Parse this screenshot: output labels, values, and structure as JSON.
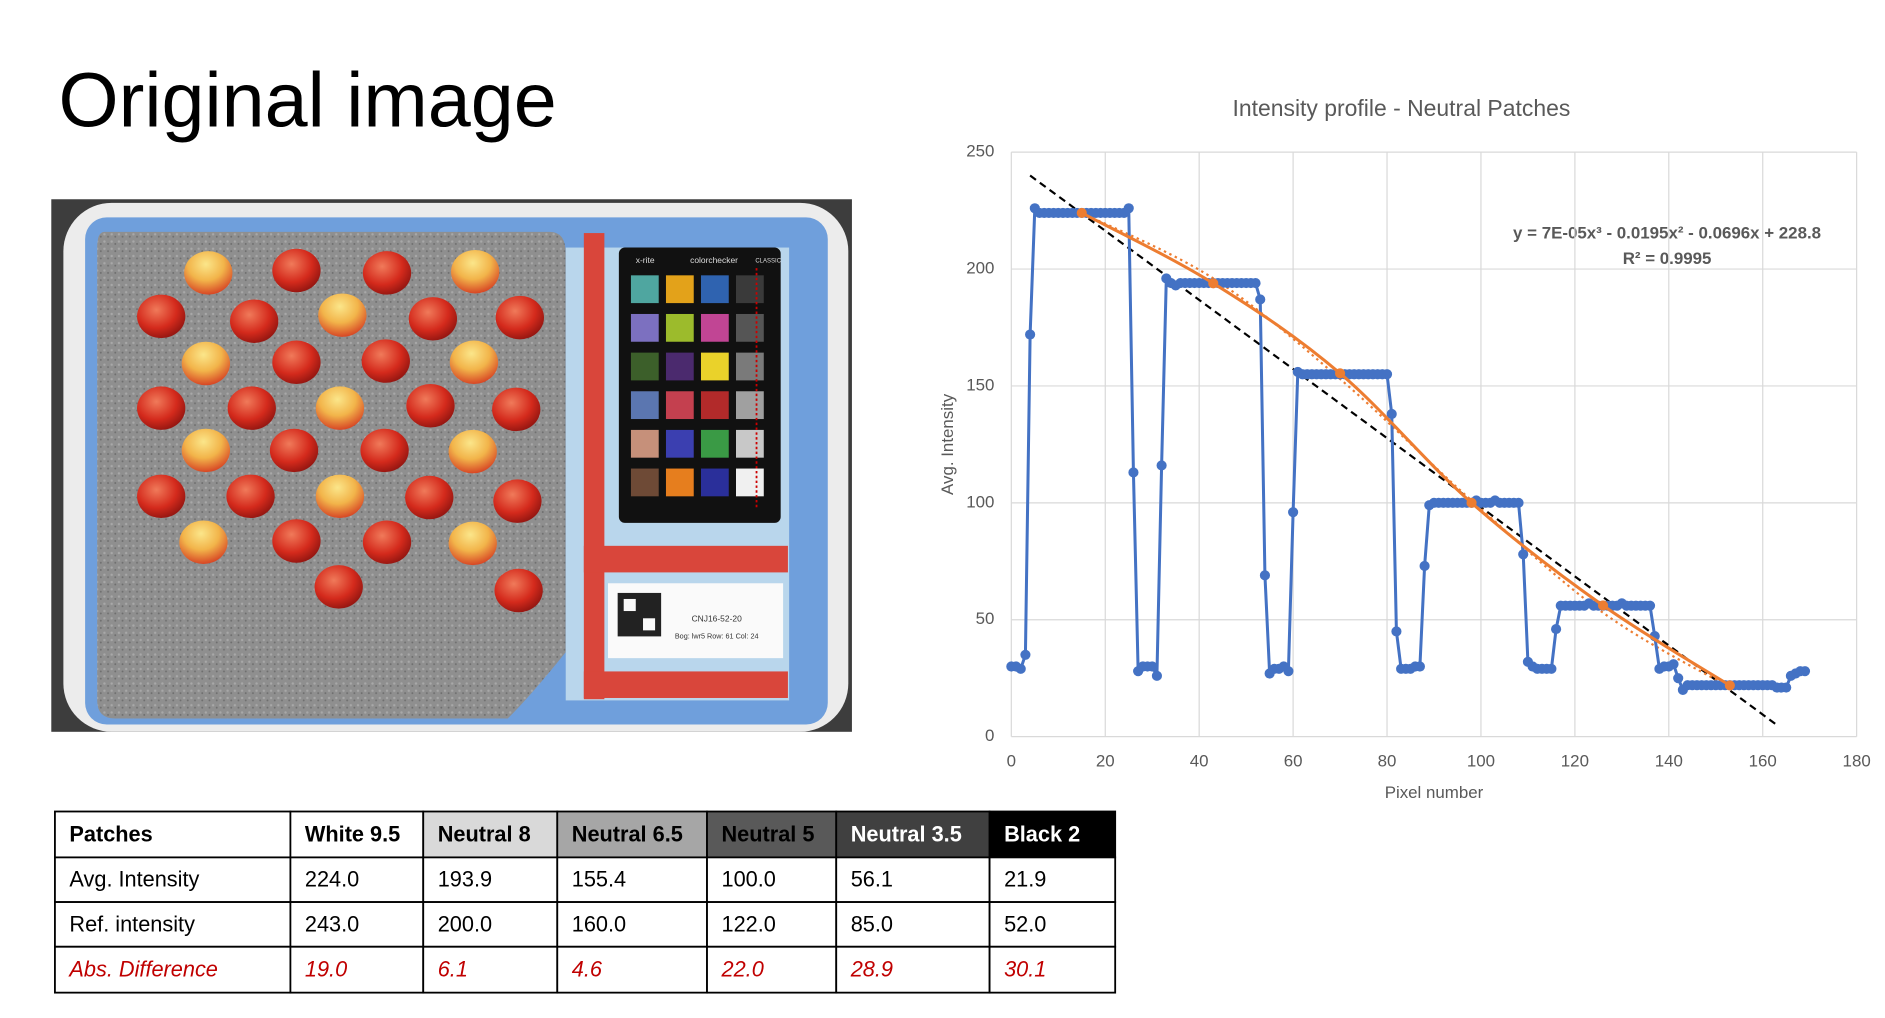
{
  "title": "Original image",
  "photo": {
    "brand": "x-rite",
    "product": "colorchecker",
    "edition": "CLASSIC",
    "label_id": "CNJ16-52-20",
    "label_location": "Bog: lwr5  Row: 61  Col: 24"
  },
  "chart_data": {
    "type": "line",
    "title": "Intensity profile - Neutral Patches",
    "x_label": "Pixel number",
    "y_label": "Avg. Intensity",
    "xlim": [
      0,
      180
    ],
    "xticks": [
      0,
      20,
      40,
      60,
      80,
      100,
      120,
      140,
      160,
      180
    ],
    "ylim": [
      0,
      250
    ],
    "yticks": [
      0,
      50,
      100,
      150,
      200,
      250
    ],
    "grid": true,
    "annotations": [
      "y = 7E-05x³ - 0.0195x² - 0.0696x + 228.8",
      "R² = 0.9995"
    ],
    "series": [
      {
        "color": "#4472c4",
        "style": "solid",
        "marker": true,
        "smooth": false,
        "x": [
          0,
          1,
          2,
          3,
          4,
          5,
          6,
          7,
          8,
          9,
          10,
          11,
          12,
          13,
          14,
          15,
          16,
          17,
          18,
          19,
          20,
          21,
          22,
          23,
          24,
          25,
          26,
          27,
          28,
          29,
          30,
          31,
          32,
          33,
          34,
          35,
          36,
          37,
          38,
          39,
          40,
          41,
          42,
          43,
          44,
          45,
          46,
          47,
          48,
          49,
          50,
          51,
          52,
          53,
          54,
          55,
          56,
          57,
          58,
          59,
          60,
          61,
          62,
          63,
          64,
          65,
          66,
          67,
          68,
          69,
          70,
          71,
          72,
          73,
          74,
          75,
          76,
          77,
          78,
          79,
          80,
          81,
          82,
          83,
          84,
          85,
          86,
          87,
          88,
          89,
          90,
          91,
          92,
          93,
          94,
          95,
          96,
          97,
          98,
          99,
          100,
          101,
          102,
          103,
          104,
          105,
          106,
          107,
          108,
          109,
          110,
          111,
          112,
          113,
          114,
          115,
          116,
          117,
          118,
          119,
          120,
          121,
          122,
          123,
          124,
          125,
          126,
          127,
          128,
          129,
          130,
          131,
          132,
          133,
          134,
          135,
          136,
          137,
          138,
          139,
          140,
          141,
          142,
          143,
          144,
          145,
          146,
          147,
          148,
          149,
          150,
          151,
          152,
          153,
          154,
          155,
          156,
          157,
          158,
          159,
          160,
          161,
          162,
          163,
          164,
          165,
          166,
          167,
          168,
          169
        ],
        "values": [
          30,
          30,
          29,
          35,
          172,
          226,
          224,
          224,
          224,
          224,
          224,
          224,
          224,
          224,
          224,
          224,
          224,
          224,
          224,
          224,
          224,
          224,
          224,
          224,
          224,
          226,
          113,
          28,
          30,
          30,
          30,
          26,
          116,
          196,
          194,
          193,
          194,
          194,
          194,
          194,
          194,
          194,
          194,
          194,
          194,
          194,
          194,
          194,
          194,
          194,
          194,
          194,
          194,
          187,
          69,
          27,
          29,
          29,
          30,
          28,
          96,
          156,
          155,
          155,
          155,
          155,
          155,
          155,
          155,
          155,
          155,
          155,
          155,
          155,
          155,
          155,
          155,
          155,
          155,
          155,
          155,
          138,
          45,
          29,
          29,
          29,
          30,
          30,
          73,
          99,
          100,
          100,
          100,
          100,
          100,
          100,
          100,
          100,
          100,
          101,
          100,
          100,
          100,
          101,
          100,
          100,
          100,
          100,
          100,
          78,
          32,
          30,
          29,
          29,
          29,
          29,
          46,
          56,
          56,
          56,
          56,
          56,
          56,
          57,
          56,
          56,
          56,
          56,
          56,
          56,
          57,
          56,
          56,
          56,
          56,
          56,
          56,
          43,
          29,
          30,
          30,
          31,
          25,
          20,
          22,
          22,
          22,
          22,
          22,
          22,
          22,
          22,
          22,
          22,
          22,
          22,
          22,
          22,
          22,
          22,
          22,
          22,
          22,
          21,
          21,
          21,
          26,
          27,
          28,
          28
        ]
      },
      {
        "color": "#ed7d31",
        "style": "solid",
        "marker": true,
        "smooth": true,
        "x": [
          15,
          43,
          70,
          98,
          126,
          153
        ],
        "values": [
          224.0,
          193.9,
          155.4,
          100.0,
          56.1,
          21.9
        ]
      },
      {
        "color": "#ed7d31",
        "style": "dotted",
        "marker": false,
        "smooth": true,
        "x": [
          15,
          43,
          70,
          98,
          126,
          153
        ],
        "values": [
          224,
          196,
          153,
          101,
          53,
          21
        ]
      },
      {
        "color": "#000000",
        "style": "dashed",
        "marker": false,
        "smooth": false,
        "x": [
          4,
          163
        ],
        "values": [
          240,
          5
        ]
      }
    ]
  },
  "table": {
    "header": [
      "Patches",
      "White 9.5",
      "Neutral 8",
      "Neutral 6.5",
      "Neutral 5",
      "Neutral 3.5",
      "Black 2"
    ],
    "header_fills": [
      "#ffffff",
      "#ffffff",
      "#d9d9d9",
      "#a6a6a6",
      "#595959",
      "#404040",
      "#000000"
    ],
    "header_text_colors": [
      "#000000",
      "#000000",
      "#000000",
      "#000000",
      "#000000",
      "#ffffff",
      "#ffffff"
    ],
    "rows": [
      [
        "Avg. Intensity",
        "224.0",
        "193.9",
        "155.4",
        "100.0",
        "56.1",
        "21.9"
      ],
      [
        "Ref. intensity",
        "243.0",
        "200.0",
        "160.0",
        "122.0",
        "85.0",
        "52.0"
      ],
      [
        "Abs. Difference",
        "19.0",
        "6.1",
        "4.6",
        "22.0",
        "28.9",
        "30.1"
      ]
    ],
    "highlight_row": 2,
    "highlight_color": "#c00000"
  }
}
